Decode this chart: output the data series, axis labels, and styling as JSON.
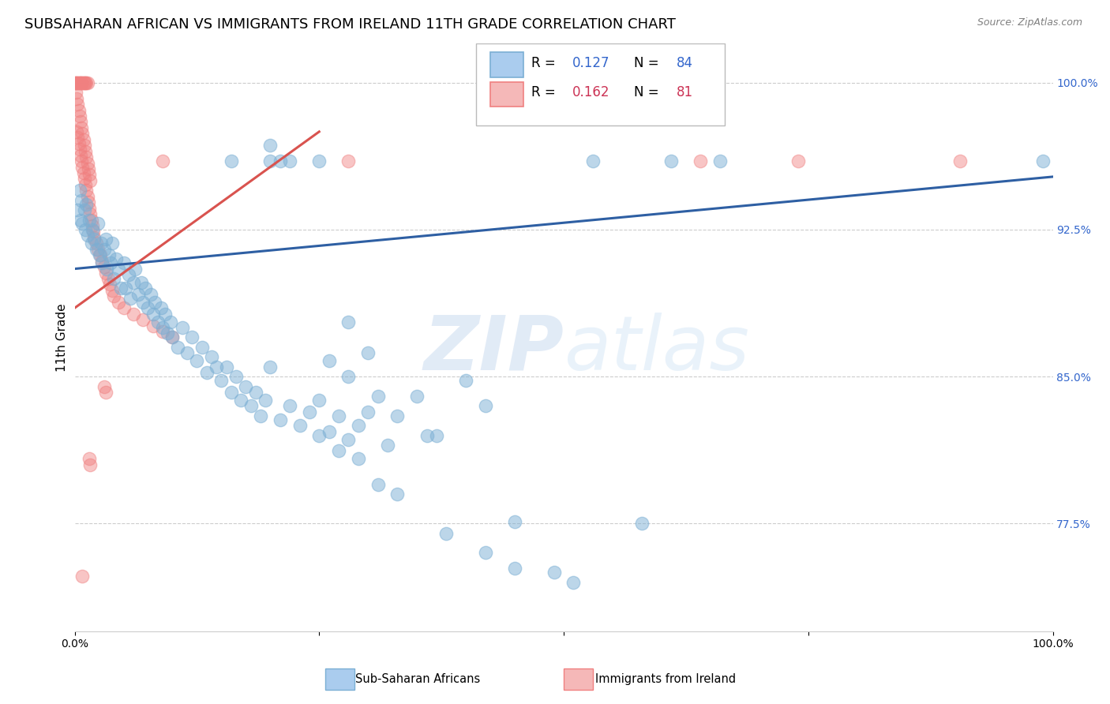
{
  "title": "SUBSAHARAN AFRICAN VS IMMIGRANTS FROM IRELAND 11TH GRADE CORRELATION CHART",
  "source": "Source: ZipAtlas.com",
  "ylabel": "11th Grade",
  "watermark": "ZIPatlas",
  "xlim": [
    0.0,
    1.0
  ],
  "ylim": [
    0.72,
    1.02
  ],
  "yticks": [
    0.775,
    0.85,
    0.925,
    1.0
  ],
  "ytick_labels": [
    "77.5%",
    "85.0%",
    "92.5%",
    "100.0%"
  ],
  "blue_scatter": [
    [
      0.003,
      0.935
    ],
    [
      0.005,
      0.945
    ],
    [
      0.006,
      0.93
    ],
    [
      0.007,
      0.94
    ],
    [
      0.008,
      0.928
    ],
    [
      0.01,
      0.935
    ],
    [
      0.011,
      0.925
    ],
    [
      0.012,
      0.938
    ],
    [
      0.013,
      0.922
    ],
    [
      0.015,
      0.93
    ],
    [
      0.017,
      0.918
    ],
    [
      0.018,
      0.925
    ],
    [
      0.02,
      0.92
    ],
    [
      0.022,
      0.915
    ],
    [
      0.024,
      0.928
    ],
    [
      0.025,
      0.912
    ],
    [
      0.027,
      0.918
    ],
    [
      0.028,
      0.908
    ],
    [
      0.03,
      0.915
    ],
    [
      0.032,
      0.92
    ],
    [
      0.033,
      0.905
    ],
    [
      0.035,
      0.912
    ],
    [
      0.037,
      0.908
    ],
    [
      0.038,
      0.918
    ],
    [
      0.04,
      0.9
    ],
    [
      0.042,
      0.91
    ],
    [
      0.045,
      0.905
    ],
    [
      0.047,
      0.895
    ],
    [
      0.05,
      0.908
    ],
    [
      0.052,
      0.895
    ],
    [
      0.055,
      0.902
    ],
    [
      0.057,
      0.89
    ],
    [
      0.06,
      0.898
    ],
    [
      0.062,
      0.905
    ],
    [
      0.065,
      0.892
    ],
    [
      0.068,
      0.898
    ],
    [
      0.07,
      0.888
    ],
    [
      0.072,
      0.895
    ],
    [
      0.075,
      0.885
    ],
    [
      0.078,
      0.892
    ],
    [
      0.08,
      0.882
    ],
    [
      0.082,
      0.888
    ],
    [
      0.085,
      0.878
    ],
    [
      0.088,
      0.885
    ],
    [
      0.09,
      0.875
    ],
    [
      0.092,
      0.882
    ],
    [
      0.095,
      0.872
    ],
    [
      0.098,
      0.878
    ],
    [
      0.1,
      0.87
    ],
    [
      0.105,
      0.865
    ],
    [
      0.11,
      0.875
    ],
    [
      0.115,
      0.862
    ],
    [
      0.12,
      0.87
    ],
    [
      0.125,
      0.858
    ],
    [
      0.13,
      0.865
    ],
    [
      0.135,
      0.852
    ],
    [
      0.14,
      0.86
    ],
    [
      0.145,
      0.855
    ],
    [
      0.15,
      0.848
    ],
    [
      0.155,
      0.855
    ],
    [
      0.16,
      0.842
    ],
    [
      0.165,
      0.85
    ],
    [
      0.17,
      0.838
    ],
    [
      0.175,
      0.845
    ],
    [
      0.18,
      0.835
    ],
    [
      0.185,
      0.842
    ],
    [
      0.19,
      0.83
    ],
    [
      0.195,
      0.838
    ],
    [
      0.2,
      0.855
    ],
    [
      0.21,
      0.828
    ],
    [
      0.22,
      0.835
    ],
    [
      0.23,
      0.825
    ],
    [
      0.24,
      0.832
    ],
    [
      0.25,
      0.838
    ],
    [
      0.26,
      0.822
    ],
    [
      0.27,
      0.83
    ],
    [
      0.28,
      0.818
    ],
    [
      0.29,
      0.825
    ],
    [
      0.3,
      0.832
    ],
    [
      0.32,
      0.815
    ],
    [
      0.35,
      0.84
    ],
    [
      0.37,
      0.82
    ],
    [
      0.4,
      0.848
    ],
    [
      0.42,
      0.835
    ],
    [
      0.16,
      0.96
    ],
    [
      0.2,
      0.96
    ],
    [
      0.21,
      0.96
    ],
    [
      0.22,
      0.96
    ],
    [
      0.25,
      0.96
    ],
    [
      0.2,
      0.968
    ],
    [
      0.53,
      0.96
    ],
    [
      0.61,
      0.96
    ],
    [
      0.66,
      0.96
    ],
    [
      0.99,
      0.96
    ],
    [
      0.28,
      0.878
    ],
    [
      0.3,
      0.862
    ],
    [
      0.31,
      0.84
    ],
    [
      0.33,
      0.83
    ],
    [
      0.36,
      0.82
    ],
    [
      0.28,
      0.85
    ],
    [
      0.26,
      0.858
    ],
    [
      0.25,
      0.82
    ],
    [
      0.27,
      0.812
    ],
    [
      0.29,
      0.808
    ],
    [
      0.31,
      0.795
    ],
    [
      0.33,
      0.79
    ],
    [
      0.38,
      0.77
    ],
    [
      0.42,
      0.76
    ],
    [
      0.45,
      0.752
    ],
    [
      0.49,
      0.75
    ],
    [
      0.51,
      0.745
    ],
    [
      0.45,
      0.776
    ],
    [
      0.58,
      0.775
    ]
  ],
  "pink_scatter": [
    [
      0.0,
      1.0
    ],
    [
      0.001,
      1.0
    ],
    [
      0.002,
      1.0
    ],
    [
      0.003,
      1.0
    ],
    [
      0.004,
      1.0
    ],
    [
      0.005,
      1.0
    ],
    [
      0.006,
      1.0
    ],
    [
      0.007,
      1.0
    ],
    [
      0.008,
      1.0
    ],
    [
      0.009,
      1.0
    ],
    [
      0.01,
      1.0
    ],
    [
      0.011,
      1.0
    ],
    [
      0.012,
      1.0
    ],
    [
      0.013,
      1.0
    ],
    [
      0.001,
      0.995
    ],
    [
      0.002,
      0.992
    ],
    [
      0.003,
      0.989
    ],
    [
      0.004,
      0.986
    ],
    [
      0.005,
      0.983
    ],
    [
      0.006,
      0.98
    ],
    [
      0.007,
      0.977
    ],
    [
      0.008,
      0.974
    ],
    [
      0.009,
      0.971
    ],
    [
      0.01,
      0.968
    ],
    [
      0.011,
      0.965
    ],
    [
      0.012,
      0.962
    ],
    [
      0.013,
      0.959
    ],
    [
      0.014,
      0.956
    ],
    [
      0.015,
      0.953
    ],
    [
      0.016,
      0.95
    ],
    [
      0.002,
      0.975
    ],
    [
      0.003,
      0.972
    ],
    [
      0.004,
      0.969
    ],
    [
      0.005,
      0.966
    ],
    [
      0.006,
      0.963
    ],
    [
      0.007,
      0.96
    ],
    [
      0.008,
      0.957
    ],
    [
      0.009,
      0.954
    ],
    [
      0.01,
      0.951
    ],
    [
      0.011,
      0.948
    ],
    [
      0.012,
      0.945
    ],
    [
      0.013,
      0.942
    ],
    [
      0.014,
      0.939
    ],
    [
      0.015,
      0.936
    ],
    [
      0.016,
      0.933
    ],
    [
      0.017,
      0.93
    ],
    [
      0.018,
      0.927
    ],
    [
      0.019,
      0.924
    ],
    [
      0.02,
      0.921
    ],
    [
      0.022,
      0.918
    ],
    [
      0.024,
      0.915
    ],
    [
      0.026,
      0.912
    ],
    [
      0.028,
      0.909
    ],
    [
      0.03,
      0.906
    ],
    [
      0.032,
      0.903
    ],
    [
      0.034,
      0.9
    ],
    [
      0.036,
      0.897
    ],
    [
      0.038,
      0.894
    ],
    [
      0.04,
      0.891
    ],
    [
      0.045,
      0.888
    ],
    [
      0.05,
      0.885
    ],
    [
      0.06,
      0.882
    ],
    [
      0.07,
      0.879
    ],
    [
      0.08,
      0.876
    ],
    [
      0.09,
      0.873
    ],
    [
      0.1,
      0.87
    ],
    [
      0.03,
      0.845
    ],
    [
      0.032,
      0.842
    ],
    [
      0.015,
      0.808
    ],
    [
      0.016,
      0.805
    ],
    [
      0.008,
      0.748
    ],
    [
      0.09,
      0.96
    ],
    [
      0.28,
      0.96
    ],
    [
      0.64,
      0.96
    ],
    [
      0.74,
      0.96
    ],
    [
      0.905,
      0.96
    ]
  ],
  "blue_color": "#7BAFD4",
  "pink_color": "#F08080",
  "blue_line_color": "#2E5FA3",
  "pink_line_color": "#D9534F",
  "grid_color": "#CCCCCC",
  "background_color": "#FFFFFF",
  "title_fontsize": 13,
  "axis_label_fontsize": 11,
  "tick_fontsize": 10,
  "legend_fontsize": 12
}
